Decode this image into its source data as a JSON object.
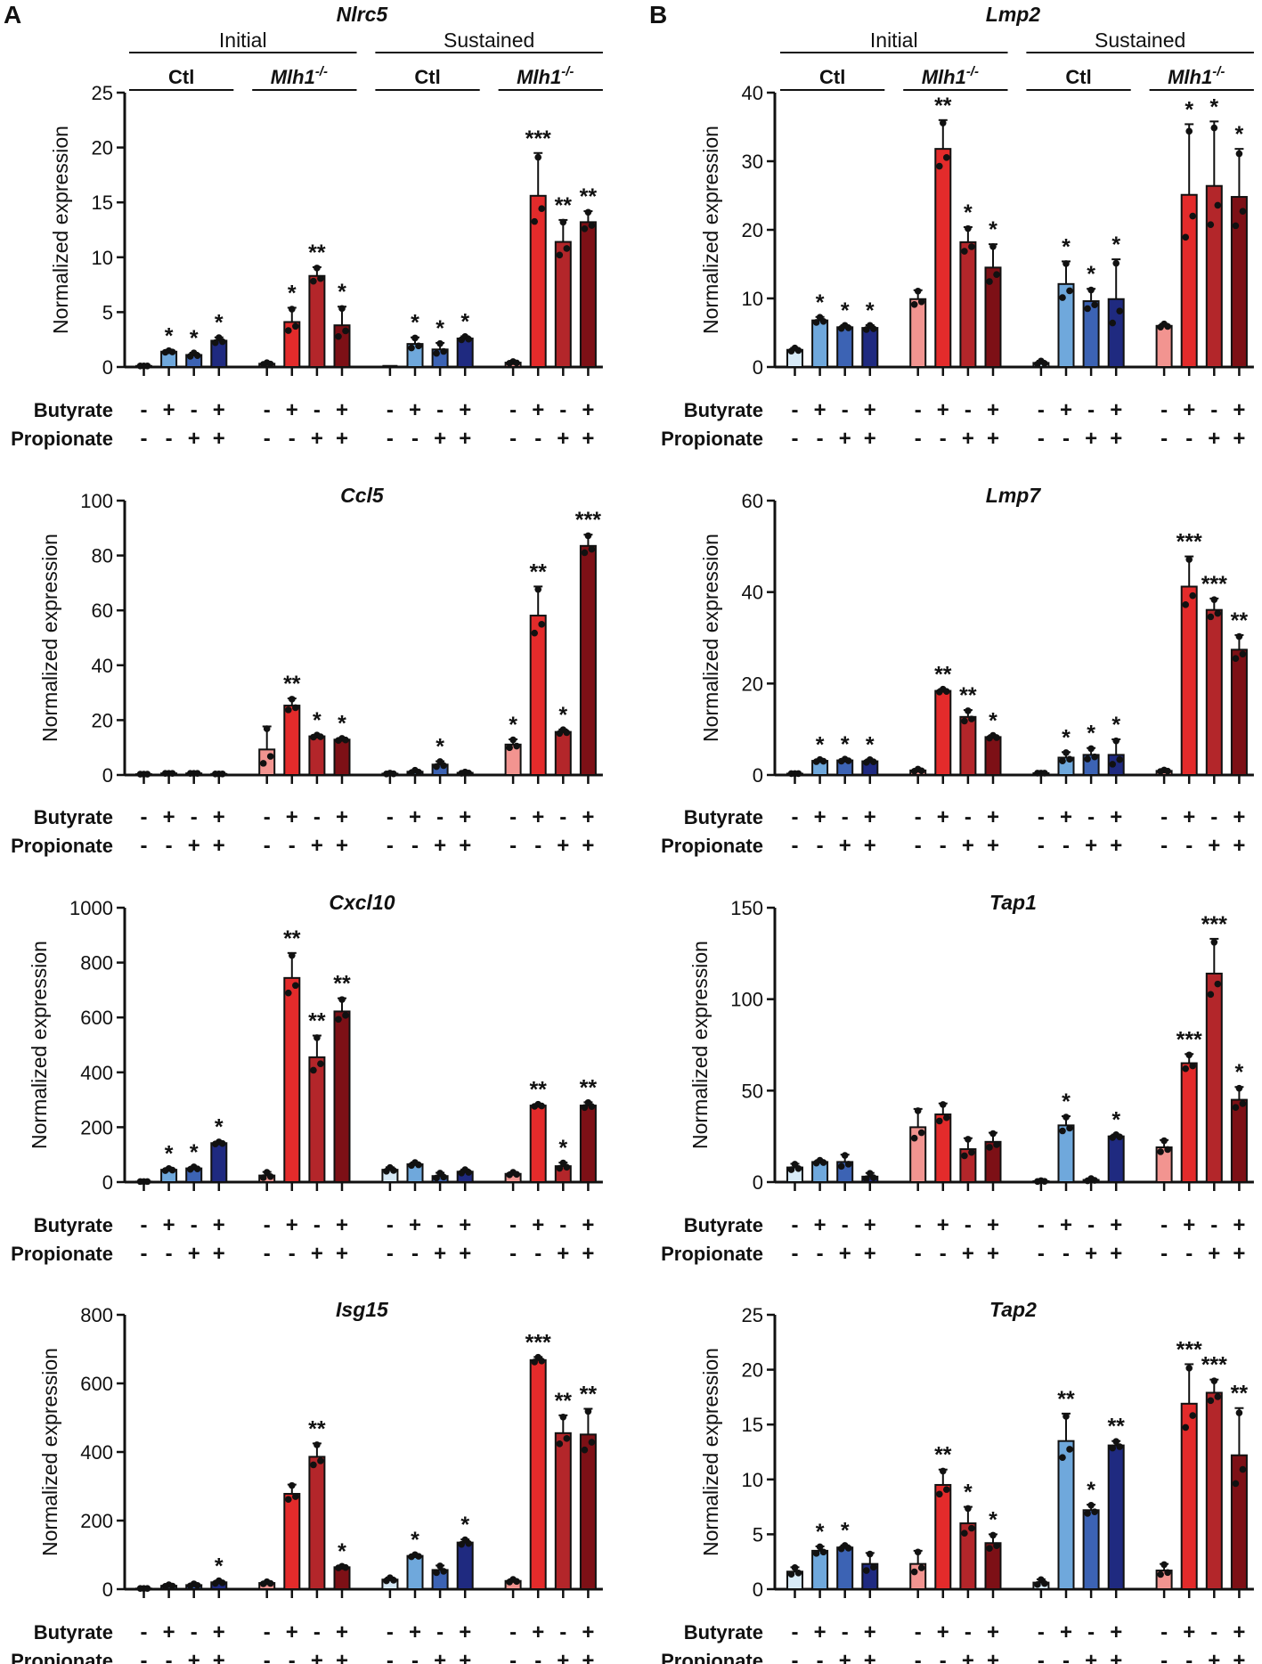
{
  "figure": {
    "panel_letters": [
      "A",
      "B"
    ],
    "ylabel": "Normalized expression",
    "row_labels": [
      "Butyrate",
      "Propionate"
    ],
    "butyrate_signs": [
      "-",
      "+",
      "-",
      "+"
    ],
    "propionate_signs": [
      "-",
      "-",
      "+",
      "+"
    ],
    "top_groups": [
      "Initial",
      "Sustained"
    ],
    "sub_groups": [
      "Ctl",
      "Mlh1",
      "Ctl",
      "Mlh1"
    ],
    "mlh1_superscript": "-/-",
    "colors": {
      "ctl": [
        "#d7eaf7",
        "#6fa8dc",
        "#3c63b4",
        "#1f2a80"
      ],
      "mlh1": [
        "#f29490",
        "#e32b2b",
        "#b3262a",
        "#7d1016"
      ]
    }
  },
  "chart_data": [
    {
      "id": "nlrc5",
      "panel": "A",
      "type": "bar",
      "title": "Nlrc5",
      "ylabel": "Normalized expression",
      "ylim": [
        0,
        25
      ],
      "yticks": [
        0,
        5,
        10,
        15,
        20,
        25
      ],
      "values": [
        0.1,
        1.4,
        1.1,
        2.4,
        0.3,
        4.1,
        8.3,
        3.8,
        0,
        2.1,
        1.6,
        2.6,
        0.4,
        15.6,
        11.4,
        13.2
      ],
      "errors": [
        0,
        0.1,
        0.2,
        0.3,
        0.1,
        1.3,
        0.8,
        1.7,
        0,
        0.6,
        0.6,
        0.2,
        0.1,
        3.9,
        2.0,
        1.0
      ],
      "stars": [
        "",
        "*",
        "*",
        "*",
        "",
        "*",
        "**",
        "*",
        "",
        "*",
        "*",
        "*",
        "",
        "***",
        "**",
        "**"
      ]
    },
    {
      "id": "lmp2",
      "panel": "B",
      "type": "bar",
      "title": "Lmp2",
      "ylabel": "Normalized expression",
      "ylim": [
        0,
        40
      ],
      "yticks": [
        0,
        10,
        20,
        30,
        40
      ],
      "values": [
        2.5,
        6.8,
        5.8,
        5.7,
        9.9,
        31.8,
        18.2,
        14.5,
        0.6,
        12.1,
        9.6,
        9.9,
        6.0,
        25.1,
        26.4,
        24.8
      ],
      "errors": [
        0.3,
        0.5,
        0.3,
        0.4,
        1.3,
        4.2,
        2.2,
        3.4,
        0.3,
        3.3,
        1.8,
        5.8,
        0.3,
        10.3,
        9.4,
        7.0
      ],
      "stars": [
        "",
        "*",
        "*",
        "*",
        "",
        "**",
        "*",
        "*",
        "",
        "*",
        "*",
        "*",
        "",
        "*",
        "*",
        "*"
      ]
    },
    {
      "id": "ccl5",
      "panel": "A",
      "type": "bar",
      "title": "Ccl5",
      "ylabel": "Normalized expression",
      "ylim": [
        0,
        100
      ],
      "yticks": [
        0,
        20,
        40,
        60,
        80,
        100
      ],
      "values": [
        0.3,
        0.6,
        0.6,
        0.4,
        9.3,
        25.3,
        14.1,
        12.9,
        0.5,
        1.2,
        3.8,
        0.8,
        11.1,
        58.1,
        15.7,
        83.5
      ],
      "errors": [
        0,
        0,
        0,
        0,
        8.4,
        2.6,
        0.5,
        0.5,
        0.2,
        0.6,
        1.2,
        0.3,
        1.9,
        10.6,
        0.9,
        4.1
      ],
      "stars": [
        "",
        "",
        "",
        "",
        "",
        "**",
        "*",
        "*",
        "",
        "",
        "*",
        "",
        "*",
        "**",
        "*",
        "***"
      ]
    },
    {
      "id": "lmp7",
      "panel": "B",
      "type": "bar",
      "title": "Lmp7",
      "ylabel": "Normalized expression",
      "ylim": [
        0,
        60
      ],
      "yticks": [
        0,
        20,
        40,
        60
      ],
      "values": [
        0.3,
        3.1,
        3.2,
        3.0,
        1.0,
        18.4,
        12.7,
        8.3,
        0.4,
        3.8,
        4.4,
        4.4,
        0.9,
        41.2,
        36.1,
        27.4
      ],
      "errors": [
        0,
        0.3,
        0.3,
        0.4,
        0.3,
        0.4,
        1.5,
        0.4,
        0,
        1.2,
        1.5,
        3.4,
        0.2,
        6.6,
        2.5,
        3.2
      ],
      "stars": [
        "",
        "*",
        "*",
        "*",
        "",
        "**",
        "**",
        "*",
        "",
        "*",
        "*",
        "*",
        "",
        "***",
        "***",
        "**"
      ]
    },
    {
      "id": "cxcl10",
      "panel": "A",
      "type": "bar",
      "title": "Cxcl10",
      "ylabel": "Normalized expression",
      "ylim": [
        0,
        1000
      ],
      "yticks": [
        0,
        200,
        400,
        600,
        800,
        1000
      ],
      "values": [
        2,
        45,
        50,
        142,
        24,
        744,
        455,
        622,
        45,
        65,
        22,
        38,
        30,
        279,
        58,
        279
      ],
      "errors": [
        0,
        5,
        6,
        5,
        13,
        91,
        79,
        48,
        9,
        7,
        12,
        8,
        6,
        5,
        13,
        12
      ],
      "stars": [
        "",
        "*",
        "*",
        "*",
        "",
        "**",
        "**",
        "**",
        "",
        "",
        "",
        "",
        "",
        "**",
        "*",
        "**"
      ]
    },
    {
      "id": "tap1",
      "panel": "B",
      "type": "bar",
      "title": "Tap1",
      "ylabel": "Normalized expression",
      "ylim": [
        0,
        150
      ],
      "yticks": [
        0,
        50,
        100,
        150
      ],
      "values": [
        8,
        11,
        11,
        3,
        30,
        37,
        18,
        22,
        0.5,
        31,
        1.2,
        25,
        19,
        65,
        114,
        45
      ],
      "errors": [
        2,
        1,
        4,
        2,
        10,
        6,
        6,
        5,
        0.3,
        5,
        0.8,
        1,
        4,
        5,
        19,
        7
      ],
      "stars": [
        "",
        "",
        "",
        "",
        "",
        "",
        "",
        "",
        "",
        "*",
        "",
        "*",
        "",
        "***",
        "***",
        "*"
      ]
    },
    {
      "id": "isg15",
      "panel": "A",
      "type": "bar",
      "title": "Isg15",
      "ylabel": "Normalized expression",
      "ylim": [
        0,
        800
      ],
      "yticks": [
        0,
        200,
        400,
        600,
        800
      ],
      "values": [
        2,
        10,
        12,
        20,
        18,
        278,
        386,
        64,
        28,
        97,
        56,
        136,
        24,
        668,
        455,
        451
      ],
      "errors": [
        0,
        3,
        4,
        5,
        4,
        27,
        39,
        3,
        6,
        4,
        13,
        9,
        5,
        9,
        52,
        75
      ],
      "stars": [
        "",
        "",
        "",
        "*",
        "",
        "",
        "**",
        "*",
        "",
        "*",
        "",
        "*",
        "",
        "***",
        "**",
        "**"
      ]
    },
    {
      "id": "tap2",
      "panel": "B",
      "type": "bar",
      "title": "Tap2",
      "ylabel": "Normalized expression",
      "ylim": [
        0,
        25
      ],
      "yticks": [
        0,
        5,
        10,
        15,
        20,
        25
      ],
      "values": [
        1.6,
        3.5,
        3.8,
        2.3,
        2.3,
        9.5,
        6.0,
        4.2,
        0.6,
        13.5,
        7.2,
        13.1,
        1.7,
        16.9,
        17.9,
        12.2
      ],
      "errors": [
        0.4,
        0.4,
        0.2,
        1.0,
        1.2,
        1.4,
        1.5,
        0.8,
        0.3,
        2.5,
        0.5,
        0.4,
        0.6,
        3.6,
        1.2,
        4.3
      ],
      "stars": [
        "",
        "*",
        "*",
        "",
        "",
        "**",
        "*",
        "*",
        "",
        "**",
        "*",
        "**",
        "",
        "***",
        "***",
        "**"
      ]
    }
  ]
}
